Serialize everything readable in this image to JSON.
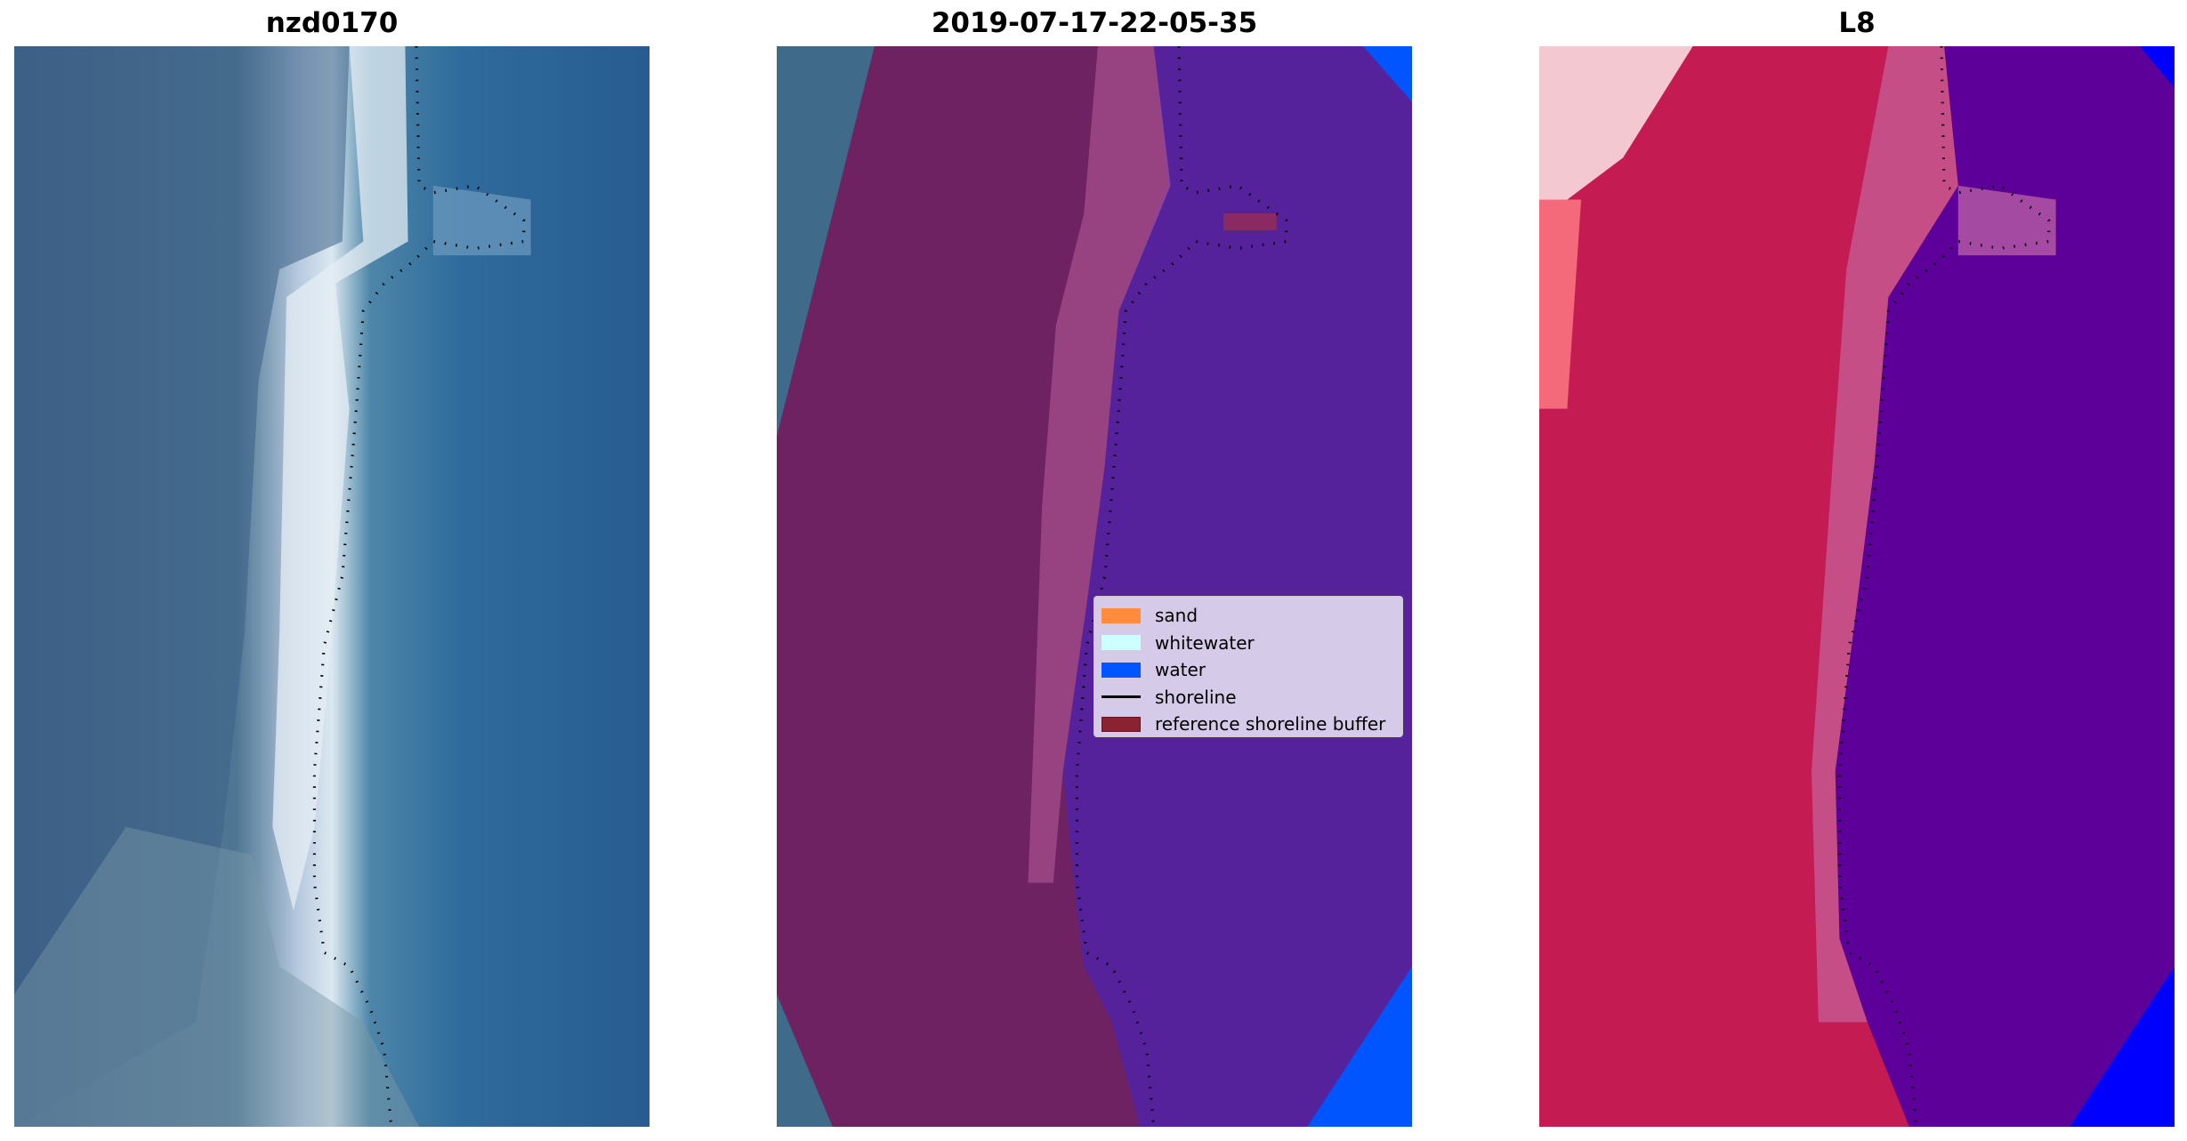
{
  "panels": [
    {
      "title": "nzd0170"
    },
    {
      "title": "2019-07-17-22-05-35"
    },
    {
      "title": "L8"
    }
  ],
  "legend": {
    "items": [
      {
        "label": "sand",
        "color": "#ff8c3c"
      },
      {
        "label": "whitewater",
        "color": "#ccffff"
      },
      {
        "label": "water",
        "color": "#0055ff"
      },
      {
        "label": "shoreline",
        "color": "#000000"
      },
      {
        "label": "reference shoreline buffer",
        "color": "#8b2232"
      }
    ]
  }
}
